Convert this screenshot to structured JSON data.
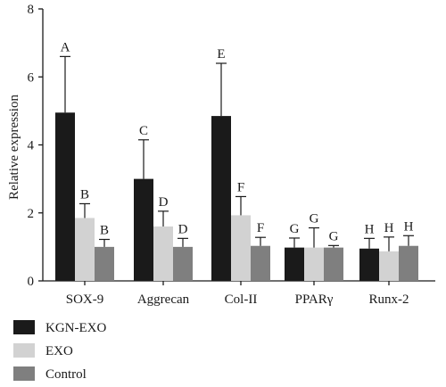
{
  "chart_data": {
    "type": "bar",
    "ylabel": "Relative expression",
    "xlabel": "",
    "ylim": [
      0,
      8
    ],
    "yticks": [
      0,
      2,
      4,
      6,
      8
    ],
    "categories": [
      "SOX-9",
      "Aggrecan",
      "Col-II",
      "PPARγ",
      "Runx-2"
    ],
    "series": [
      {
        "name": "KGN-EXO",
        "color": "#1a1a1a",
        "values": [
          4.95,
          3.0,
          4.85,
          0.98,
          0.95
        ],
        "errors": [
          1.65,
          1.15,
          1.55,
          0.28,
          0.3
        ],
        "letters": [
          "A",
          "C",
          "E",
          "G",
          "H"
        ]
      },
      {
        "name": "EXO",
        "color": "#d2d2d2",
        "values": [
          1.85,
          1.6,
          1.93,
          0.98,
          0.87
        ],
        "errors": [
          0.42,
          0.45,
          0.55,
          0.58,
          0.42
        ],
        "letters": [
          "B",
          "D",
          "F",
          "G",
          "H"
        ]
      },
      {
        "name": "Control",
        "color": "#7f7f7f",
        "values": [
          1.0,
          1.0,
          1.03,
          0.98,
          1.03
        ],
        "errors": [
          0.22,
          0.25,
          0.25,
          0.06,
          0.3
        ],
        "letters": [
          "B",
          "D",
          "F",
          "G",
          "H"
        ]
      }
    ],
    "grid": false,
    "legend_position": "bottom-left"
  }
}
